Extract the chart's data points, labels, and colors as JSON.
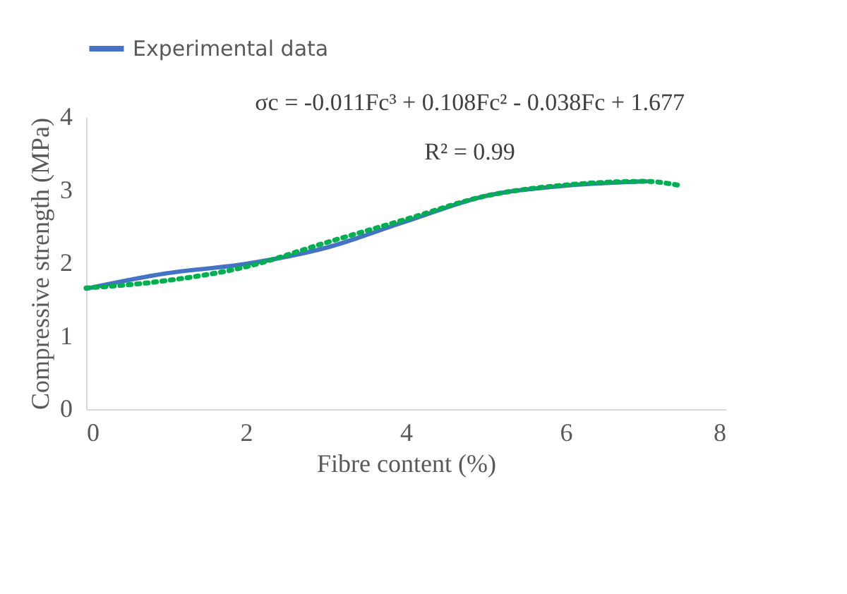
{
  "chart_data": {
    "type": "line",
    "xlabel": "Fibre content (%)",
    "ylabel": "Compressive strength (MPa)",
    "xlim": [
      0,
      8
    ],
    "xticks": [
      0,
      2,
      4,
      6,
      8
    ],
    "ylim": [
      0,
      4
    ],
    "yticks": [
      0,
      1,
      2,
      3,
      4
    ],
    "grid": false,
    "legend": "top",
    "series": [
      {
        "name": "Experimental data",
        "color": "#4472c4",
        "line_style": "solid",
        "x": [
          0,
          1,
          2,
          3,
          4,
          5,
          6,
          7
        ],
        "values": [
          1.65,
          1.86,
          1.99,
          2.21,
          2.57,
          2.92,
          3.06,
          3.12
        ]
      },
      {
        "color": "#00b050",
        "line_style": "dotted",
        "x": [
          0,
          1,
          2,
          3,
          4,
          5,
          6,
          7,
          7.4
        ],
        "values": [
          1.66,
          1.76,
          1.95,
          2.28,
          2.6,
          2.92,
          3.07,
          3.12,
          3.07
        ]
      }
    ],
    "annotations": [
      "σc = -0.011Fc³ + 0.108Fc² - 0.038Fc + 1.677",
      "R² = 0.99"
    ]
  }
}
